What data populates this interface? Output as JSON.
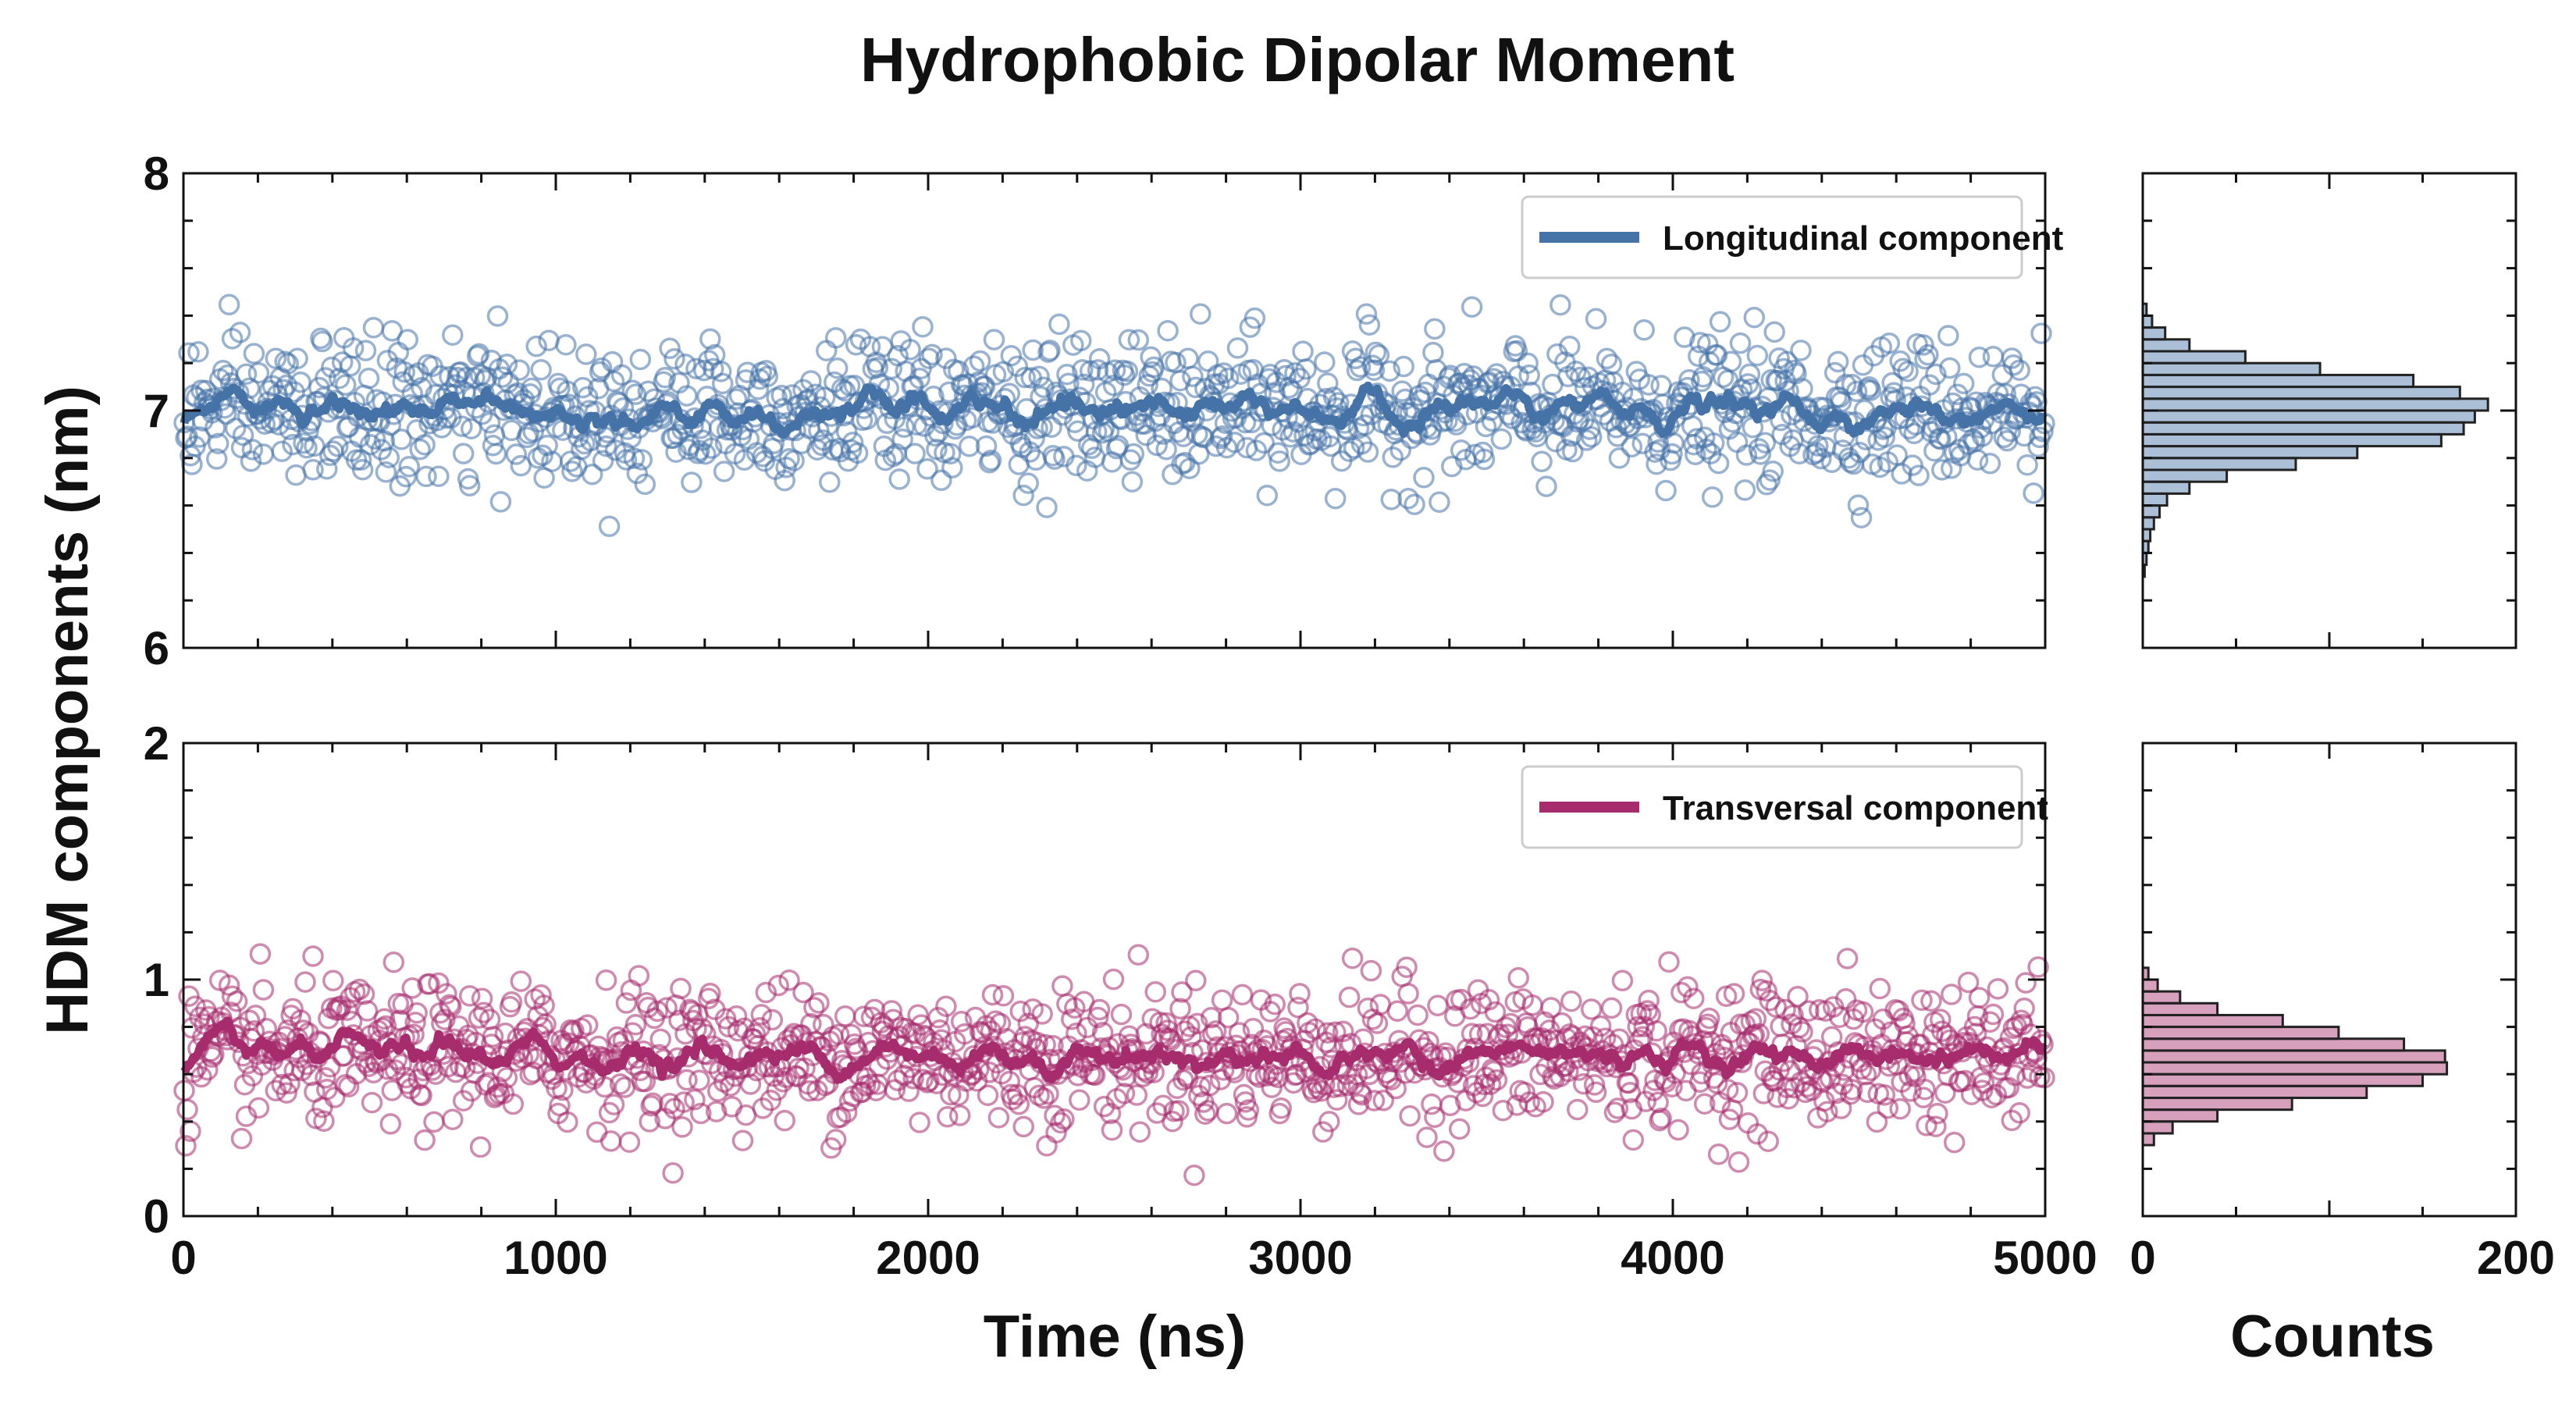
{
  "title": "Hydrophobic Dipolar Moment",
  "ylabel": "HDM components (nm)",
  "xlabel": "Time (ns)",
  "hist_xlabel": "Counts",
  "colors": {
    "longitudinal": "#4572a7",
    "transversal": "#a62c6d",
    "axes": "#111111"
  },
  "chart_data": [
    {
      "id": "longitudinal-scatter",
      "type": "scatter",
      "legend": "Longitudinal component",
      "legend_position": "top-right",
      "x_range": [
        0,
        5000
      ],
      "ylim": [
        6,
        8
      ],
      "x_ticks": [
        "0",
        "1000",
        "2000",
        "3000",
        "4000",
        "5000"
      ],
      "y_ticks": [
        "6",
        "7",
        "8"
      ],
      "mean": 7.0,
      "std": 0.15,
      "n_points": 1200,
      "running_average": true
    },
    {
      "id": "transversal-scatter",
      "type": "scatter",
      "legend": "Transversal component",
      "legend_position": "top-right",
      "x_range": [
        0,
        5000
      ],
      "ylim": [
        0,
        2
      ],
      "x_ticks": [
        "0",
        "1000",
        "2000",
        "3000",
        "4000",
        "5000"
      ],
      "y_ticks": [
        "0",
        "1",
        "2"
      ],
      "mean": 0.68,
      "std": 0.15,
      "n_points": 1200,
      "running_average": true
    },
    {
      "id": "longitudinal-histogram",
      "type": "bar",
      "orientation": "horizontal",
      "xlim": [
        0,
        200
      ],
      "ylim": [
        6,
        8
      ],
      "x_ticks": [
        "0",
        "200"
      ],
      "bin_edges": [
        6.3,
        6.35,
        6.4,
        6.45,
        6.5,
        6.55,
        6.6,
        6.65,
        6.7,
        6.75,
        6.8,
        6.85,
        6.9,
        6.95,
        7.0,
        7.05,
        7.1,
        7.15,
        7.2,
        7.25,
        7.3,
        7.35,
        7.4,
        7.45
      ],
      "counts": [
        1,
        2,
        3,
        4,
        6,
        9,
        13,
        25,
        45,
        82,
        115,
        160,
        172,
        178,
        185,
        170,
        145,
        95,
        55,
        25,
        12,
        5,
        2
      ]
    },
    {
      "id": "transversal-histogram",
      "type": "bar",
      "orientation": "horizontal",
      "xlim": [
        0,
        200
      ],
      "ylim": [
        0,
        2
      ],
      "x_ticks": [
        "0",
        "200"
      ],
      "bin_edges": [
        0.3,
        0.35,
        0.4,
        0.45,
        0.5,
        0.55,
        0.6,
        0.65,
        0.7,
        0.75,
        0.8,
        0.85,
        0.9,
        0.95,
        1.0,
        1.05
      ],
      "counts": [
        6,
        16,
        40,
        80,
        120,
        150,
        163,
        162,
        140,
        105,
        75,
        40,
        20,
        8,
        3
      ]
    }
  ]
}
